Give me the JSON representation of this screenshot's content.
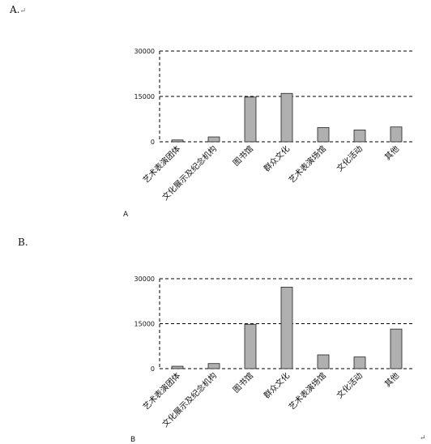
{
  "header_a": "A.",
  "header_a_mark": "↵",
  "header_b": "B.",
  "corner_mark": "↵",
  "chart_data": [
    {
      "type": "bar",
      "panel_label": "A",
      "categories": [
        "艺术表演团体",
        "文化展示及纪念机构",
        "图书馆",
        "群众文化",
        "艺术表演场馆",
        "文化活动",
        "其他"
      ],
      "values": [
        600,
        1600,
        14800,
        16000,
        4700,
        3900,
        4900
      ],
      "yticks": [
        0,
        15000,
        30000
      ],
      "ylim": [
        0,
        30000
      ],
      "grid": "dashed-horizontal"
    },
    {
      "type": "bar",
      "panel_label": "B",
      "categories": [
        "艺术表演团体",
        "文化展示及纪念机构",
        "图书馆",
        "群众文化",
        "艺术表演场馆",
        "文化活动",
        "其他"
      ],
      "values": [
        800,
        1700,
        14800,
        27200,
        4600,
        3900,
        13200
      ],
      "yticks": [
        0,
        15000,
        30000
      ],
      "ylim": [
        0,
        30000
      ],
      "grid": "dashed-horizontal"
    }
  ]
}
